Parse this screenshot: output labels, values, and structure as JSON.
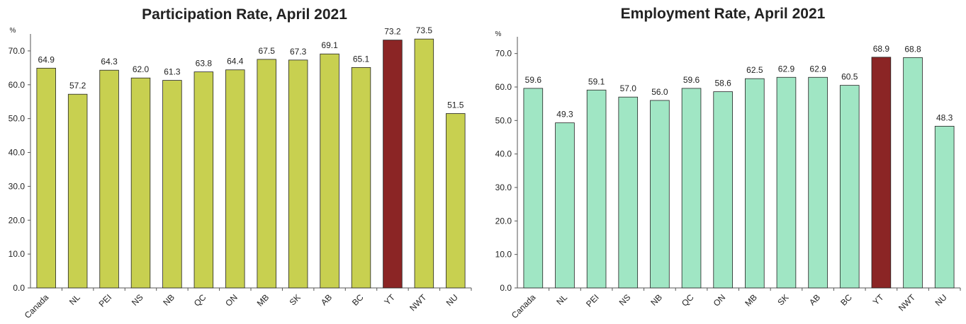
{
  "chart_data": [
    {
      "type": "bar",
      "title": "Participation Rate, April 2021",
      "y_label": "%",
      "categories": [
        "Canada",
        "NL",
        "PEI",
        "NS",
        "NB",
        "QC",
        "ON",
        "MB",
        "SK",
        "AB",
        "BC",
        "YT",
        "NWT",
        "NU"
      ],
      "values": [
        64.9,
        57.2,
        64.3,
        62.0,
        61.3,
        63.8,
        64.4,
        67.5,
        67.3,
        69.1,
        65.1,
        73.2,
        73.5,
        51.5
      ],
      "value_labels": [
        "64.9",
        "57.2",
        "64.3",
        "62.0",
        "61.3",
        "63.8",
        "64.4",
        "67.5",
        "67.3",
        "69.1",
        "65.1",
        "73.2",
        "73.5",
        "51.5"
      ],
      "colors": [
        "#c8d050",
        "#c8d050",
        "#c8d050",
        "#c8d050",
        "#c8d050",
        "#c8d050",
        "#c8d050",
        "#c8d050",
        "#c8d050",
        "#c8d050",
        "#c8d050",
        "#8b2525",
        "#c8d050",
        "#c8d050"
      ],
      "ylim": [
        0,
        75
      ],
      "yticks": [
        {
          "value": 0,
          "label": "0.0"
        },
        {
          "value": 10,
          "label": "10.0"
        },
        {
          "value": 20,
          "label": "20.0"
        },
        {
          "value": 30,
          "label": "30.0"
        },
        {
          "value": 40,
          "label": "40.0"
        },
        {
          "value": 50,
          "label": "50.0"
        },
        {
          "value": 60,
          "label": "60.0"
        },
        {
          "value": 70,
          "label": "70.0"
        }
      ]
    },
    {
      "type": "bar",
      "title": "Employment Rate, April 2021",
      "y_label": "%",
      "categories": [
        "Canada",
        "NL",
        "PEI",
        "NS",
        "NB",
        "QC",
        "ON",
        "MB",
        "SK",
        "AB",
        "BC",
        "YT",
        "NWT",
        "NU"
      ],
      "values": [
        59.6,
        49.3,
        59.1,
        57.0,
        56.0,
        59.6,
        58.6,
        62.5,
        62.9,
        62.9,
        60.5,
        68.9,
        68.8,
        48.3
      ],
      "value_labels": [
        "59.6",
        "49.3",
        "59.1",
        "57.0",
        "56.0",
        "59.6",
        "58.6",
        "62.5",
        "62.9",
        "62.9",
        "60.5",
        "68.9",
        "68.8",
        "48.3"
      ],
      "colors": [
        "#a0e6c4",
        "#a0e6c4",
        "#a0e6c4",
        "#a0e6c4",
        "#a0e6c4",
        "#a0e6c4",
        "#a0e6c4",
        "#a0e6c4",
        "#a0e6c4",
        "#a0e6c4",
        "#a0e6c4",
        "#8b2525",
        "#a0e6c4",
        "#a0e6c4"
      ],
      "ylim": [
        0,
        75
      ],
      "yticks": [
        {
          "value": 0,
          "label": "0.0"
        },
        {
          "value": 10,
          "label": "10.0"
        },
        {
          "value": 20,
          "label": "20.0"
        },
        {
          "value": 30,
          "label": "30.0"
        },
        {
          "value": 40,
          "label": "40.0"
        },
        {
          "value": 50,
          "label": "50.0"
        },
        {
          "value": 60,
          "label": "60.0"
        },
        {
          "value": 70,
          "label": "70.0"
        }
      ]
    }
  ]
}
